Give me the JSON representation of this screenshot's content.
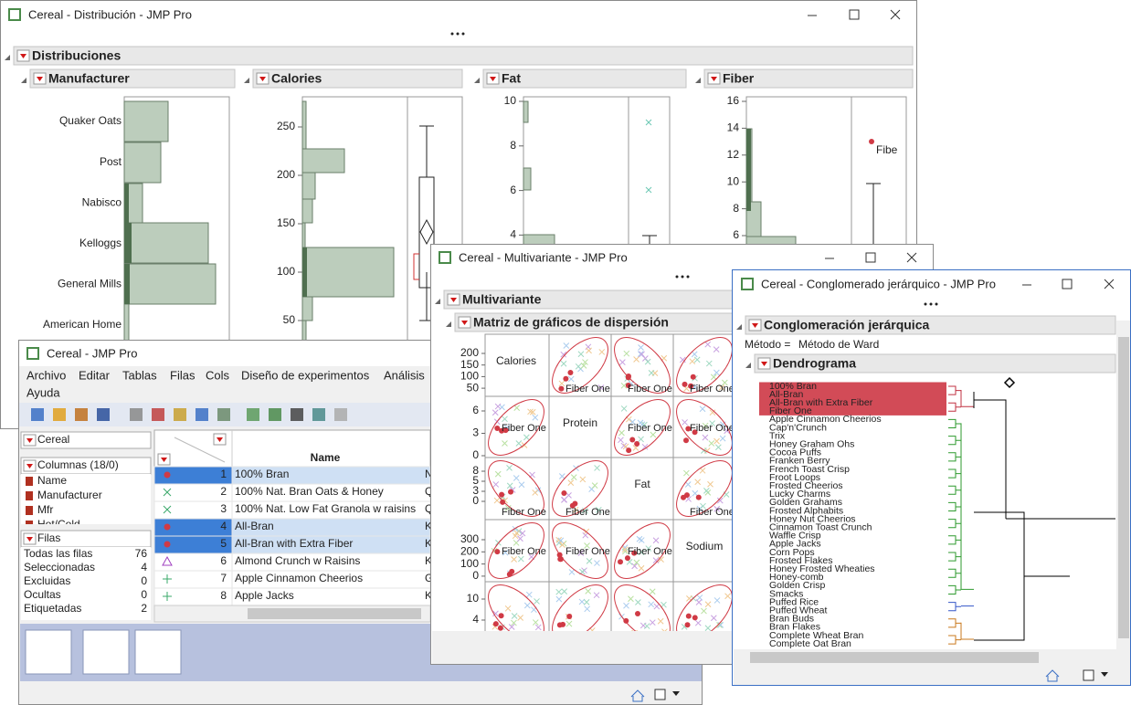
{
  "distribution_window": {
    "title": "Cereal - Distribución - JMP Pro",
    "section": "Distribuciones",
    "panels": [
      {
        "title": "Manufacturer",
        "categories": [
          "Quaker Oats",
          "Post",
          "Nabisco",
          "Kelloggs",
          "General Mills",
          "American Home"
        ]
      },
      {
        "title": "Calories",
        "ticks": [
          250,
          200,
          150,
          100,
          50
        ]
      },
      {
        "title": "Fat",
        "ticks": [
          10,
          8,
          6,
          4
        ]
      },
      {
        "title": "Fiber",
        "ticks": [
          16,
          14,
          12,
          10,
          8,
          6
        ],
        "point_label": "Fibe"
      }
    ]
  },
  "data_table_window": {
    "title": "Cereal - JMP Pro",
    "menu": [
      "Archivo",
      "Editar",
      "Tablas",
      "Filas",
      "Cols",
      "Diseño de experimentos",
      "Análisis",
      "Ayuda"
    ],
    "table_panel": "Cereal",
    "columns_panel": {
      "title": "Columnas (18/0)",
      "columns": [
        "Name",
        "Manufacturer",
        "Mfr",
        "Hot/Cold"
      ]
    },
    "rows_panel": {
      "title": "Filas",
      "items": [
        [
          "Todas las filas",
          76
        ],
        [
          "Seleccionadas",
          4
        ],
        [
          "Excluidas",
          0
        ],
        [
          "Ocultas",
          0
        ],
        [
          "Etiquetadas",
          2
        ]
      ]
    },
    "table": {
      "header": "Name",
      "rows": [
        [
          1,
          "100% Bran",
          "N"
        ],
        [
          2,
          "100% Nat. Bran Oats & Honey",
          "Q"
        ],
        [
          3,
          "100% Nat. Low Fat Granola w raisins",
          "Q"
        ],
        [
          4,
          "All-Bran",
          "K"
        ],
        [
          5,
          "All-Bran with Extra Fiber",
          "K"
        ],
        [
          6,
          "Almond Crunch w Raisins",
          "K"
        ],
        [
          7,
          "Apple Cinnamon Cheerios",
          "G"
        ],
        [
          8,
          "Apple Jacks",
          "K"
        ]
      ]
    }
  },
  "multivariate_window": {
    "title": "Cereal - Multivariante - JMP Pro",
    "section": "Multivariante",
    "subsection": "Matriz de gráficos de dispersión",
    "variables": [
      "Calories",
      "Protein",
      "Fat",
      "Sodium"
    ],
    "axis_ticks": [
      [
        200,
        150,
        100,
        50
      ],
      [
        6,
        3,
        0
      ],
      [
        8,
        5,
        3,
        0
      ],
      [
        300,
        200,
        100,
        0
      ],
      [
        10,
        4
      ]
    ],
    "point_label": "Fiber One"
  },
  "cluster_window": {
    "title": "Cereal - Conglomerado jerárquico - JMP Pro",
    "section": "Conglomeración jerárquica",
    "method_label": "Método =",
    "method": "Método de Ward",
    "subsection": "Dendrograma",
    "clusters": [
      {
        "color": "#000000",
        "highlight": "#d24b57",
        "names": [
          "100% Bran",
          "All-Bran",
          "All-Bran with Extra Fiber",
          "Fiber One"
        ]
      },
      {
        "color": "#2e9a2e",
        "names": [
          "Apple Cinnamon Cheerios",
          "Cap'n'Crunch",
          "Trix",
          "Honey Graham Ohs",
          "Cocoa Puffs",
          "Franken Berry",
          "French Toast Crisp",
          "Froot Loops",
          "Frosted Cheerios",
          "Lucky Charms",
          "Golden Grahams",
          "Frosted Alphabits",
          "Honey Nut Cheerios",
          "Cinnamon Toast Crunch",
          "Waffle Crisp",
          "Apple Jacks",
          "Corn Pops",
          "Frosted Flakes",
          "Honey Frosted Wheaties",
          "Honey-comb",
          "Golden Crisp",
          "Smacks"
        ]
      },
      {
        "color": "#3557c8",
        "names": [
          "Puffed Rice",
          "Puffed Wheat"
        ]
      },
      {
        "color": "#c9781c",
        "names": [
          "Bran Buds",
          "Bran Flakes",
          "Complete Wheat Bran",
          "Complete Oat Bran"
        ]
      }
    ]
  }
}
